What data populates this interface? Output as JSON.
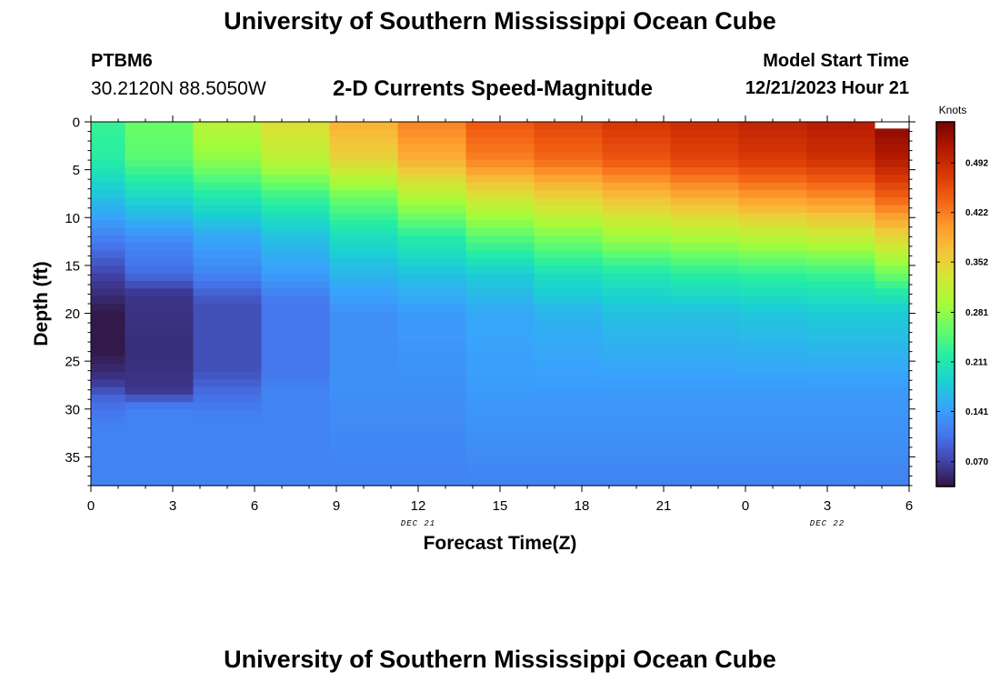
{
  "page": {
    "title": "University of Southern Mississippi Ocean Cube",
    "footer_title": "University of Southern Mississippi Ocean Cube",
    "station_id": "PTBM6",
    "station_coords": "30.2120N  88.5050W",
    "plot_title": "2-D Currents Speed-Magnitude",
    "model_start_label": "Model Start Time",
    "model_start_value": "12/21/2023 Hour 21"
  },
  "chart_data": {
    "type": "heatmap",
    "title": "2-D Currents Speed-Magnitude",
    "xlabel": "Forecast Time(Z)",
    "ylabel": "Depth (ft)",
    "x_hours": [
      0,
      3,
      6,
      9,
      12,
      15,
      18,
      21,
      24,
      27,
      30
    ],
    "x_tick_labels": [
      "0",
      "3",
      "6",
      "9",
      "12",
      "15",
      "18",
      "21",
      "0",
      "3",
      "6"
    ],
    "x_date_labels": [
      {
        "hour": 12,
        "label": "DEC 21"
      },
      {
        "hour": 27,
        "label": "DEC 22"
      }
    ],
    "xlim": [
      0,
      30
    ],
    "y_ticks": [
      0,
      5,
      10,
      15,
      20,
      25,
      30,
      35
    ],
    "ylim": [
      0,
      38
    ],
    "colorbar": {
      "label": "Knots",
      "ticks": [
        0.07,
        0.141,
        0.211,
        0.281,
        0.352,
        0.422,
        0.492
      ],
      "tick_labels": [
        "0.070",
        "0.141",
        "0.211",
        "0.281",
        "0.352",
        "0.422",
        "0.492"
      ],
      "range": [
        0.035,
        0.55
      ],
      "colors": [
        "#30123b",
        "#4145ab",
        "#4675ed",
        "#39a2fc",
        "#1bcfd4",
        "#24eca6",
        "#61fc6c",
        "#a4fc3b",
        "#d1e834",
        "#f3c63a",
        "#fe9b2d",
        "#f36315",
        "#d93806",
        "#b11901",
        "#7a0402"
      ]
    },
    "column_edges_hours": [
      0,
      1.25,
      3.75,
      6.25,
      8.75,
      11.25,
      13.75,
      16.25,
      18.75,
      21.25,
      23.75,
      26.25,
      28.75,
      30
    ],
    "column_profiles": [
      [
        [
          0,
          0.23
        ],
        [
          4,
          0.22
        ],
        [
          8,
          0.17
        ],
        [
          12,
          0.12
        ],
        [
          16,
          0.07
        ],
        [
          20,
          0.04
        ],
        [
          24,
          0.04
        ],
        [
          27,
          0.06
        ],
        [
          29,
          0.1
        ],
        [
          32,
          0.12
        ],
        [
          38,
          0.12
        ]
      ],
      [
        [
          0,
          0.26
        ],
        [
          4,
          0.25
        ],
        [
          8,
          0.19
        ],
        [
          12,
          0.13
        ],
        [
          16,
          0.1
        ],
        [
          18,
          0.06
        ],
        [
          24,
          0.055
        ],
        [
          28,
          0.06
        ],
        [
          30,
          0.12
        ],
        [
          38,
          0.12
        ]
      ],
      [
        [
          0,
          0.31
        ],
        [
          4,
          0.28
        ],
        [
          8,
          0.21
        ],
        [
          12,
          0.15
        ],
        [
          16,
          0.12
        ],
        [
          19,
          0.08
        ],
        [
          26,
          0.08
        ],
        [
          28,
          0.1
        ],
        [
          31,
          0.12
        ],
        [
          38,
          0.12
        ]
      ],
      [
        [
          0,
          0.34
        ],
        [
          4,
          0.31
        ],
        [
          8,
          0.23
        ],
        [
          12,
          0.17
        ],
        [
          16,
          0.14
        ],
        [
          19,
          0.11
        ],
        [
          26,
          0.11
        ],
        [
          28,
          0.12
        ],
        [
          38,
          0.12
        ]
      ],
      [
        [
          0,
          0.385
        ],
        [
          4,
          0.35
        ],
        [
          8,
          0.26
        ],
        [
          12,
          0.2
        ],
        [
          16,
          0.16
        ],
        [
          20,
          0.13
        ],
        [
          28,
          0.13
        ],
        [
          38,
          0.12
        ]
      ],
      [
        [
          0,
          0.42
        ],
        [
          4,
          0.385
        ],
        [
          8,
          0.3
        ],
        [
          12,
          0.22
        ],
        [
          16,
          0.17
        ],
        [
          20,
          0.14
        ],
        [
          28,
          0.13
        ],
        [
          38,
          0.12
        ]
      ],
      [
        [
          0,
          0.45
        ],
        [
          4,
          0.42
        ],
        [
          8,
          0.33
        ],
        [
          12,
          0.25
        ],
        [
          16,
          0.18
        ],
        [
          20,
          0.15
        ],
        [
          28,
          0.14
        ],
        [
          38,
          0.12
        ]
      ],
      [
        [
          0,
          0.465
        ],
        [
          4,
          0.435
        ],
        [
          8,
          0.35
        ],
        [
          12,
          0.27
        ],
        [
          16,
          0.2
        ],
        [
          20,
          0.16
        ],
        [
          28,
          0.14
        ],
        [
          38,
          0.12
        ]
      ],
      [
        [
          0,
          0.48
        ],
        [
          4,
          0.45
        ],
        [
          8,
          0.37
        ],
        [
          12,
          0.29
        ],
        [
          16,
          0.21
        ],
        [
          20,
          0.17
        ],
        [
          28,
          0.14
        ],
        [
          38,
          0.12
        ]
      ],
      [
        [
          0,
          0.49
        ],
        [
          4,
          0.465
        ],
        [
          8,
          0.385
        ],
        [
          12,
          0.3
        ],
        [
          16,
          0.22
        ],
        [
          20,
          0.17
        ],
        [
          28,
          0.14
        ],
        [
          38,
          0.12
        ]
      ],
      [
        [
          0,
          0.5
        ],
        [
          4,
          0.475
        ],
        [
          8,
          0.4
        ],
        [
          12,
          0.31
        ],
        [
          16,
          0.225
        ],
        [
          20,
          0.175
        ],
        [
          28,
          0.14
        ],
        [
          38,
          0.12
        ]
      ],
      [
        [
          0,
          0.51
        ],
        [
          4,
          0.485
        ],
        [
          8,
          0.41
        ],
        [
          12,
          0.32
        ],
        [
          16,
          0.23
        ],
        [
          20,
          0.18
        ],
        [
          28,
          0.14
        ],
        [
          38,
          0.12
        ]
      ],
      [
        [
          0,
          0.54
        ],
        [
          4,
          0.51
        ],
        [
          8,
          0.44
        ],
        [
          12,
          0.35
        ],
        [
          16,
          0.26
        ],
        [
          18,
          0.21
        ],
        [
          20,
          0.18
        ],
        [
          28,
          0.14
        ],
        [
          38,
          0.12
        ]
      ]
    ],
    "top_gap_column": 12,
    "top_gap_depth": 0.7
  }
}
